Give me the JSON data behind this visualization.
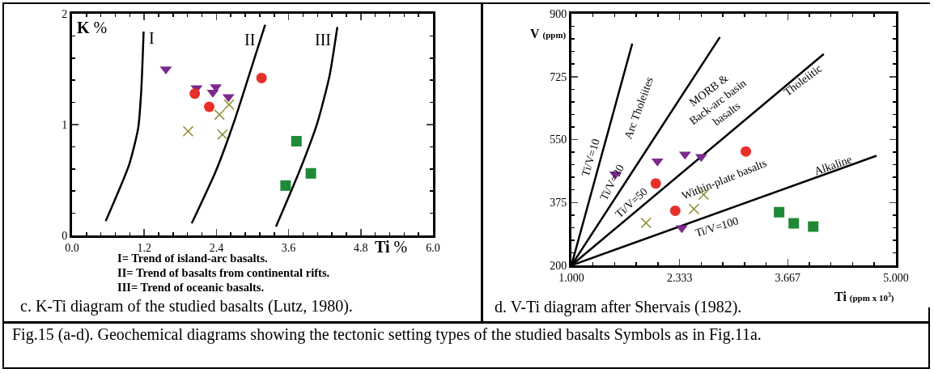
{
  "chart_data": [
    {
      "type": "scatter",
      "xlabel": "Ti %",
      "ylabel": "K %",
      "xlim": [
        0,
        6
      ],
      "ylim": [
        0,
        2
      ],
      "xticks": [
        {
          "value": 0,
          "label": "0.0"
        },
        1.2,
        2.4,
        3.6,
        4.8,
        {
          "value": 6,
          "label": "6.0"
        }
      ],
      "yticks": [
        0,
        1,
        2
      ],
      "grid": false,
      "legend": false,
      "series": [
        {
          "type": "line",
          "color": "#000000",
          "marker": "none",
          "x": [
            0.56,
            0.95,
            1.1,
            1.15,
            1.19
          ],
          "values": [
            0.13,
            0.64,
            0.97,
            1.3,
            1.84
          ]
        },
        {
          "type": "line",
          "color": "#000000",
          "marker": "none",
          "x": [
            1.99,
            2.39,
            2.69,
            2.94,
            3.21
          ],
          "values": [
            0.11,
            0.58,
            1.02,
            1.44,
            1.9
          ]
        },
        {
          "type": "line",
          "color": "#000000",
          "marker": "none",
          "x": [
            3.39,
            3.78,
            4.08,
            4.28,
            4.41
          ],
          "values": [
            0.08,
            0.58,
            1.02,
            1.44,
            1.88
          ]
        },
        {
          "color": "#7b2a8c",
          "marker": "triangle",
          "x": [
            1.56,
            2.07,
            2.39,
            2.34,
            2.6
          ],
          "values": [
            1.5,
            1.33,
            1.34,
            1.29,
            1.25
          ]
        },
        {
          "color": "#e8302a",
          "marker": "circle",
          "x": [
            2.04,
            2.28,
            3.15
          ],
          "values": [
            1.28,
            1.16,
            1.42
          ]
        },
        {
          "color": "#8a8a2a",
          "marker": "cross",
          "x": [
            1.93,
            2.45,
            2.61,
            2.5
          ],
          "values": [
            0.94,
            1.09,
            1.18,
            0.91
          ]
        },
        {
          "color": "#1e8a36",
          "marker": "square",
          "x": [
            3.73,
            3.97,
            3.55
          ],
          "values": [
            0.85,
            0.56,
            0.45
          ]
        }
      ],
      "annotations": [
        "I",
        "II",
        "III",
        "I= Trend of island-arc basalts.",
        "II= Trend of basalts from continental rifts.",
        "III= Trend of oceanic basalts.",
        "c. K-Ti diagram of the studied basalts (Lutz, 1980)."
      ]
    },
    {
      "type": "scatter",
      "xlabel": "Ti (ppm x 10$^{3}$)",
      "ylabel": "V (ppm)",
      "xlim": [
        1,
        5
      ],
      "ylim": [
        200,
        900
      ],
      "xticks": [
        {
          "value": 1,
          "label": "1.000"
        },
        {
          "value": 2.333,
          "label": "2.333"
        },
        {
          "value": 3.667,
          "label": "3.667"
        },
        {
          "value": 5,
          "label": "5.000"
        }
      ],
      "yticks": [
        200,
        375,
        550,
        725,
        900
      ],
      "grid": false,
      "legend": false,
      "series": [
        {
          "type": "line",
          "color": "#000000",
          "marker": "none",
          "x": [
            1,
            1.75
          ],
          "values": [
            200,
            817
          ]
        },
        {
          "type": "line",
          "color": "#000000",
          "marker": "none",
          "x": [
            1,
            2.83
          ],
          "values": [
            200,
            835
          ]
        },
        {
          "type": "line",
          "color": "#000000",
          "marker": "none",
          "x": [
            1,
            4.11
          ],
          "values": [
            200,
            788
          ]
        },
        {
          "type": "line",
          "color": "#000000",
          "marker": "none",
          "x": [
            1,
            4.76
          ],
          "values": [
            200,
            505
          ]
        },
        {
          "color": "#7b2a8c",
          "marker": "triangle",
          "x": [
            1.54,
            2.06,
            2.4,
            2.6,
            2.36
          ],
          "values": [
            454,
            490,
            509,
            502,
            304
          ]
        },
        {
          "color": "#e8302a",
          "marker": "circle",
          "x": [
            2.04,
            2.28,
            3.15
          ],
          "values": [
            428,
            352,
            517
          ]
        },
        {
          "color": "#8a8a2a",
          "marker": "cross",
          "x": [
            1.92,
            2.51,
            2.63
          ],
          "values": [
            318,
            357,
            397
          ]
        },
        {
          "color": "#1e8a36",
          "marker": "square",
          "x": [
            3.56,
            3.74,
            3.98
          ],
          "values": [
            348,
            317,
            308
          ]
        }
      ],
      "annotations": [
        "Ti/V=10",
        "Ti/V=20",
        "Ti/V=50",
        "Ti/V=100",
        "Arc Tholeiites",
        "MORB &\nBack-arc basin\nbasalts",
        "Tholeiitic",
        "Within-plate basalts",
        "Alkaline",
        "d. V-Ti diagram after Shervais (1982).",
        "Fig.15 (a-d). Geochemical diagrams showing the tectonic setting types of the studied basalts Symbols as in Fig.11a."
      ]
    }
  ]
}
